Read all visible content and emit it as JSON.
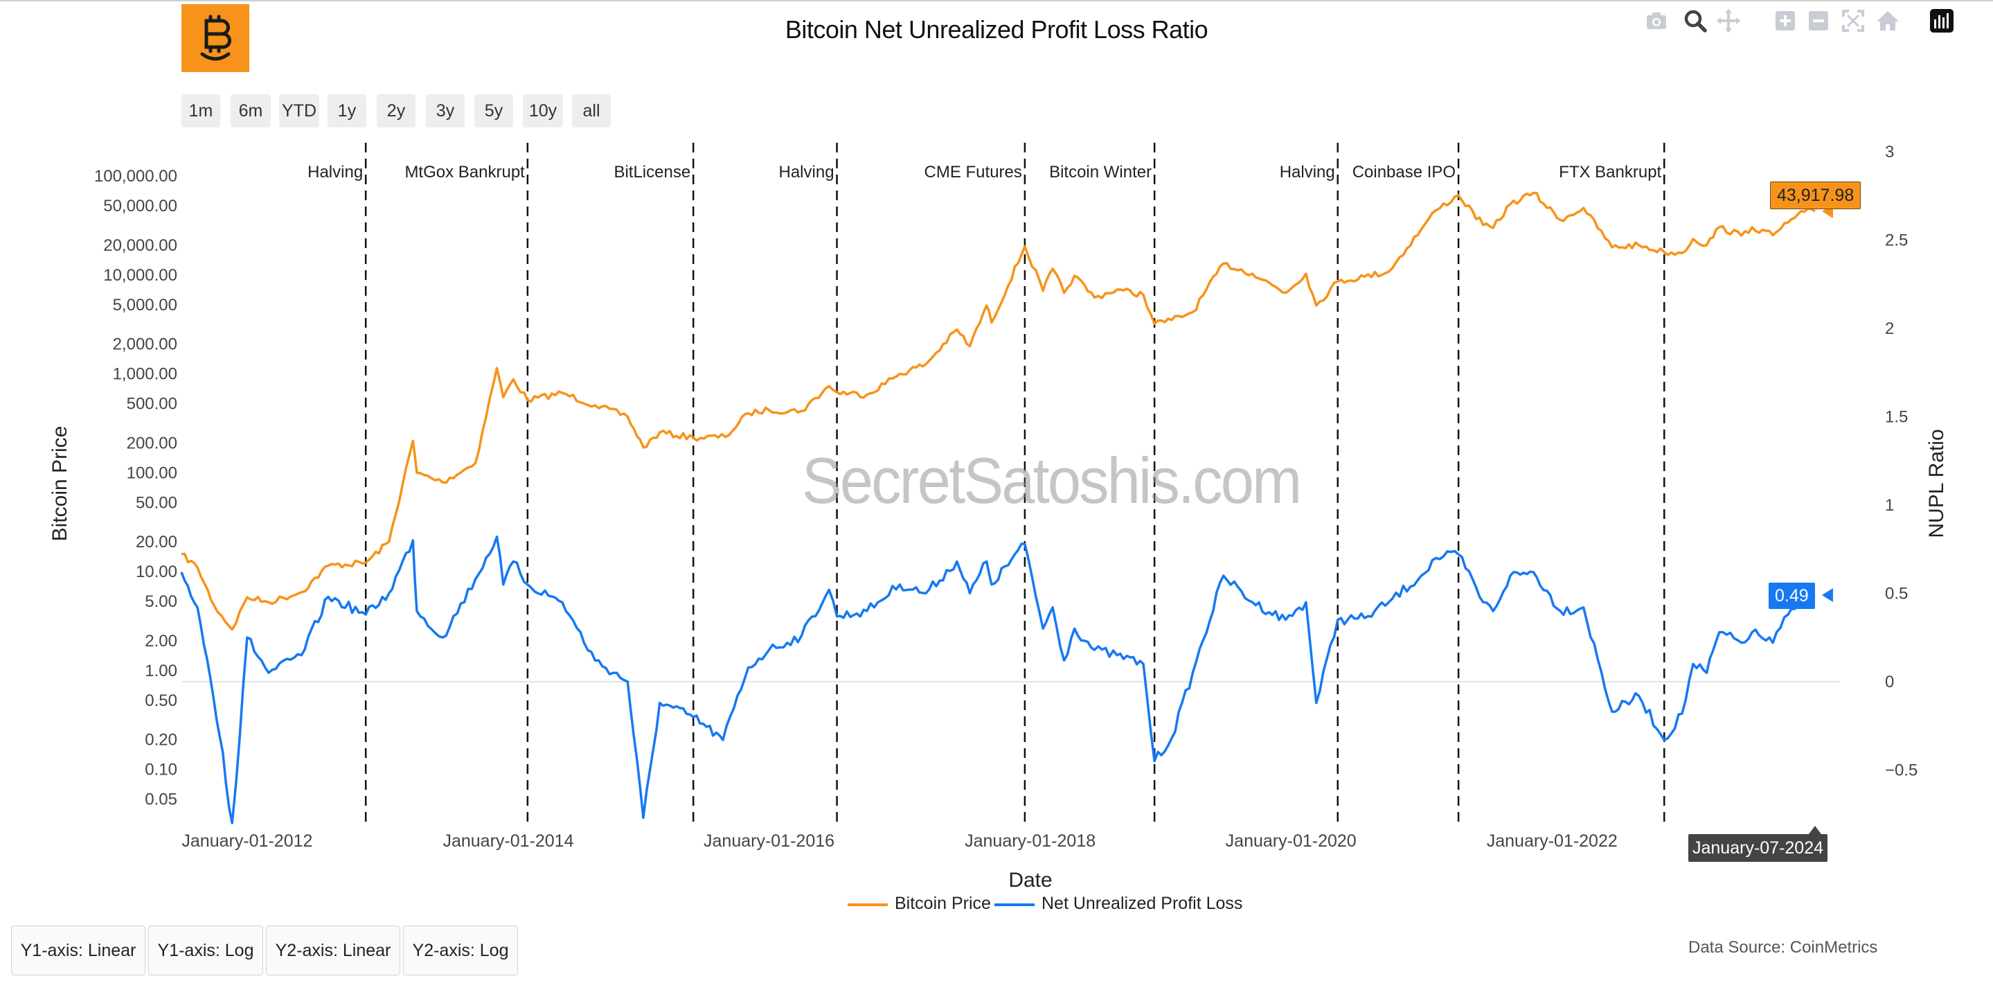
{
  "title": "Bitcoin Net Unrealized Profit Loss Ratio",
  "range_buttons": [
    "1m",
    "6m",
    "YTD",
    "1y",
    "2y",
    "3y",
    "5y",
    "10y",
    "all"
  ],
  "scale_buttons": [
    "Y1-axis: Linear",
    "Y1-axis: Log",
    "Y2-axis: Linear",
    "Y2-axis: Log"
  ],
  "data_source": "Data Source: CoinMetrics",
  "watermark": "SecretSatoshis.com",
  "hover": {
    "price_label": "43,917.98",
    "nupl_label": "0.49",
    "date_label": "January-07-2024"
  },
  "modebar_icons": [
    "camera-icon",
    "zoom-icon",
    "pan-icon",
    "zoom-in-icon",
    "zoom-out-icon",
    "autoscale-icon",
    "home-icon",
    "plotly-logo-icon"
  ],
  "colors": {
    "price": "#f7931a",
    "nupl": "#1778f2",
    "zero_line": "#dde3f0",
    "event_line": "#111111"
  },
  "chart_data": {
    "type": "line",
    "title": "Bitcoin Net Unrealized Profit Loss Ratio",
    "xlabel": "Date",
    "y1label": "Bitcoin Price",
    "y2label": "NUPL Ratio",
    "y1_scale": "log",
    "y2_scale": "linear",
    "y2_range": [
      -0.8,
      3.05
    ],
    "x_range": [
      "2011-07-01",
      "2024-03-15"
    ],
    "x_ticks": [
      "January-01-2012",
      "January-01-2014",
      "January-01-2016",
      "January-01-2018",
      "January-01-2020",
      "January-01-2022"
    ],
    "y1_ticks": [
      "0.05",
      "0.10",
      "0.20",
      "0.50",
      "1.00",
      "2.00",
      "5.00",
      "10.00",
      "20.00",
      "50.00",
      "100.00",
      "200.00",
      "500.00",
      "1,000.00",
      "2,000.00",
      "5,000.00",
      "10,000.00",
      "20,000.00",
      "50,000.00",
      "100,000.00"
    ],
    "y2_ticks": [
      "−0.5",
      "0",
      "0.5",
      "1",
      "1.5",
      "2",
      "2.5",
      "3"
    ],
    "grid": false,
    "legend_position": "bottom-center",
    "events": [
      {
        "label": "Halving",
        "date": "2012-11-28"
      },
      {
        "label": "MtGox Bankrupt",
        "date": "2014-02-24"
      },
      {
        "label": "BitLicense",
        "date": "2015-06-03"
      },
      {
        "label": "Halving",
        "date": "2016-07-09"
      },
      {
        "label": "CME Futures",
        "date": "2017-12-17"
      },
      {
        "label": "Bitcoin Winter",
        "date": "2018-12-15"
      },
      {
        "label": "Halving",
        "date": "2020-05-11"
      },
      {
        "label": "Coinbase IPO",
        "date": "2021-04-14"
      },
      {
        "label": "FTX Bankrupt",
        "date": "2022-11-11"
      }
    ],
    "series": [
      {
        "name": "Bitcoin Price",
        "axis": "y1",
        "points": [
          [
            "2011-07-01",
            15
          ],
          [
            "2011-08-15",
            11
          ],
          [
            "2011-10-01",
            4.5
          ],
          [
            "2011-11-20",
            2.6
          ],
          [
            "2012-01-01",
            5.5
          ],
          [
            "2012-03-01",
            4.9
          ],
          [
            "2012-06-01",
            6.2
          ],
          [
            "2012-08-15",
            11.5
          ],
          [
            "2012-11-28",
            12.3
          ],
          [
            "2013-02-01",
            20
          ],
          [
            "2013-04-09",
            210
          ],
          [
            "2013-04-20",
            100
          ],
          [
            "2013-07-01",
            80
          ],
          [
            "2013-10-01",
            125
          ],
          [
            "2013-11-30",
            1140
          ],
          [
            "2013-12-18",
            580
          ],
          [
            "2014-01-15",
            880
          ],
          [
            "2014-02-24",
            540
          ],
          [
            "2014-06-01",
            640
          ],
          [
            "2014-09-01",
            480
          ],
          [
            "2014-12-01",
            370
          ],
          [
            "2015-01-14",
            180
          ],
          [
            "2015-03-01",
            255
          ],
          [
            "2015-06-03",
            226
          ],
          [
            "2015-09-01",
            230
          ],
          [
            "2015-11-04",
            400
          ],
          [
            "2016-01-01",
            430
          ],
          [
            "2016-04-01",
            420
          ],
          [
            "2016-06-17",
            750
          ],
          [
            "2016-07-09",
            650
          ],
          [
            "2016-10-01",
            615
          ],
          [
            "2017-01-01",
            997
          ],
          [
            "2017-03-15",
            1250
          ],
          [
            "2017-06-10",
            2800
          ],
          [
            "2017-07-16",
            1900
          ],
          [
            "2017-09-01",
            4900
          ],
          [
            "2017-09-15",
            3300
          ],
          [
            "2017-12-17",
            19400
          ],
          [
            "2018-02-06",
            6900
          ],
          [
            "2018-03-05",
            11500
          ],
          [
            "2018-04-06",
            6600
          ],
          [
            "2018-05-05",
            9800
          ],
          [
            "2018-06-30",
            5900
          ],
          [
            "2018-09-01",
            7100
          ],
          [
            "2018-11-14",
            6300
          ],
          [
            "2018-12-15",
            3200
          ],
          [
            "2019-02-01",
            3500
          ],
          [
            "2019-04-01",
            4200
          ],
          [
            "2019-06-26",
            13000
          ],
          [
            "2019-09-15",
            10300
          ],
          [
            "2019-12-17",
            6600
          ],
          [
            "2020-02-12",
            10300
          ],
          [
            "2020-03-12",
            4900
          ],
          [
            "2020-05-11",
            8600
          ],
          [
            "2020-07-25",
            9600
          ],
          [
            "2020-10-01",
            10800
          ],
          [
            "2020-12-31",
            29000
          ],
          [
            "2021-02-10",
            45000
          ],
          [
            "2021-04-14",
            64000
          ],
          [
            "2021-06-22",
            32000
          ],
          [
            "2021-07-20",
            29800
          ],
          [
            "2021-09-06",
            52000
          ],
          [
            "2021-11-10",
            67500
          ],
          [
            "2022-01-24",
            36000
          ],
          [
            "2022-03-30",
            47500
          ],
          [
            "2022-06-18",
            19000
          ],
          [
            "2022-09-01",
            20000
          ],
          [
            "2022-11-11",
            17000
          ],
          [
            "2022-12-31",
            16600
          ],
          [
            "2023-01-31",
            23100
          ],
          [
            "2023-03-10",
            20000
          ],
          [
            "2023-04-14",
            30400
          ],
          [
            "2023-06-15",
            25000
          ],
          [
            "2023-07-15",
            30300
          ],
          [
            "2023-09-11",
            25200
          ],
          [
            "2023-10-24",
            34000
          ],
          [
            "2023-12-08",
            43500
          ],
          [
            "2024-01-07",
            43918
          ]
        ]
      },
      {
        "name": "Net Unrealized Profit Loss",
        "axis": "y2",
        "points": [
          [
            "2011-07-01",
            0.62
          ],
          [
            "2011-08-15",
            0.42
          ],
          [
            "2011-09-20",
            0.02
          ],
          [
            "2011-10-25",
            -0.4
          ],
          [
            "2011-11-20",
            -0.85
          ],
          [
            "2012-01-01",
            0.25
          ],
          [
            "2012-03-01",
            0.05
          ],
          [
            "2012-06-01",
            0.15
          ],
          [
            "2012-08-15",
            0.48
          ],
          [
            "2012-11-28",
            0.38
          ],
          [
            "2013-02-01",
            0.5
          ],
          [
            "2013-04-09",
            0.8
          ],
          [
            "2013-04-20",
            0.4
          ],
          [
            "2013-07-01",
            0.25
          ],
          [
            "2013-10-01",
            0.58
          ],
          [
            "2013-11-30",
            0.82
          ],
          [
            "2013-12-18",
            0.55
          ],
          [
            "2014-01-15",
            0.68
          ],
          [
            "2014-02-24",
            0.55
          ],
          [
            "2014-06-01",
            0.45
          ],
          [
            "2014-09-01",
            0.12
          ],
          [
            "2014-12-01",
            0.0
          ],
          [
            "2015-01-14",
            -0.77
          ],
          [
            "2015-03-01",
            -0.12
          ],
          [
            "2015-06-03",
            -0.2
          ],
          [
            "2015-08-25",
            -0.33
          ],
          [
            "2015-11-04",
            0.08
          ],
          [
            "2016-01-01",
            0.18
          ],
          [
            "2016-04-01",
            0.26
          ],
          [
            "2016-06-17",
            0.52
          ],
          [
            "2016-07-09",
            0.37
          ],
          [
            "2016-10-01",
            0.4
          ],
          [
            "2017-01-01",
            0.55
          ],
          [
            "2017-03-15",
            0.5
          ],
          [
            "2017-06-10",
            0.68
          ],
          [
            "2017-07-16",
            0.5
          ],
          [
            "2017-09-01",
            0.68
          ],
          [
            "2017-09-15",
            0.55
          ],
          [
            "2017-12-17",
            0.78
          ],
          [
            "2018-02-06",
            0.3
          ],
          [
            "2018-03-05",
            0.42
          ],
          [
            "2018-04-06",
            0.12
          ],
          [
            "2018-05-05",
            0.3
          ],
          [
            "2018-06-30",
            0.18
          ],
          [
            "2018-09-01",
            0.15
          ],
          [
            "2018-11-14",
            0.1
          ],
          [
            "2018-12-15",
            -0.45
          ],
          [
            "2019-02-01",
            -0.32
          ],
          [
            "2019-04-01",
            0.05
          ],
          [
            "2019-06-26",
            0.6
          ],
          [
            "2019-09-15",
            0.45
          ],
          [
            "2019-12-17",
            0.35
          ],
          [
            "2020-02-12",
            0.45
          ],
          [
            "2020-03-12",
            -0.12
          ],
          [
            "2020-05-11",
            0.35
          ],
          [
            "2020-07-25",
            0.36
          ],
          [
            "2020-10-01",
            0.45
          ],
          [
            "2020-12-31",
            0.6
          ],
          [
            "2021-02-10",
            0.7
          ],
          [
            "2021-04-14",
            0.72
          ],
          [
            "2021-06-22",
            0.45
          ],
          [
            "2021-07-20",
            0.4
          ],
          [
            "2021-09-06",
            0.6
          ],
          [
            "2021-11-10",
            0.62
          ],
          [
            "2022-01-24",
            0.4
          ],
          [
            "2022-03-30",
            0.42
          ],
          [
            "2022-06-18",
            -0.17
          ],
          [
            "2022-09-01",
            -0.08
          ],
          [
            "2022-11-11",
            -0.33
          ],
          [
            "2022-12-31",
            -0.18
          ],
          [
            "2023-01-31",
            0.1
          ],
          [
            "2023-03-10",
            0.05
          ],
          [
            "2023-04-14",
            0.28
          ],
          [
            "2023-06-15",
            0.22
          ],
          [
            "2023-07-15",
            0.28
          ],
          [
            "2023-09-11",
            0.22
          ],
          [
            "2023-10-24",
            0.38
          ],
          [
            "2023-12-08",
            0.48
          ],
          [
            "2024-01-07",
            0.49
          ]
        ]
      }
    ]
  }
}
